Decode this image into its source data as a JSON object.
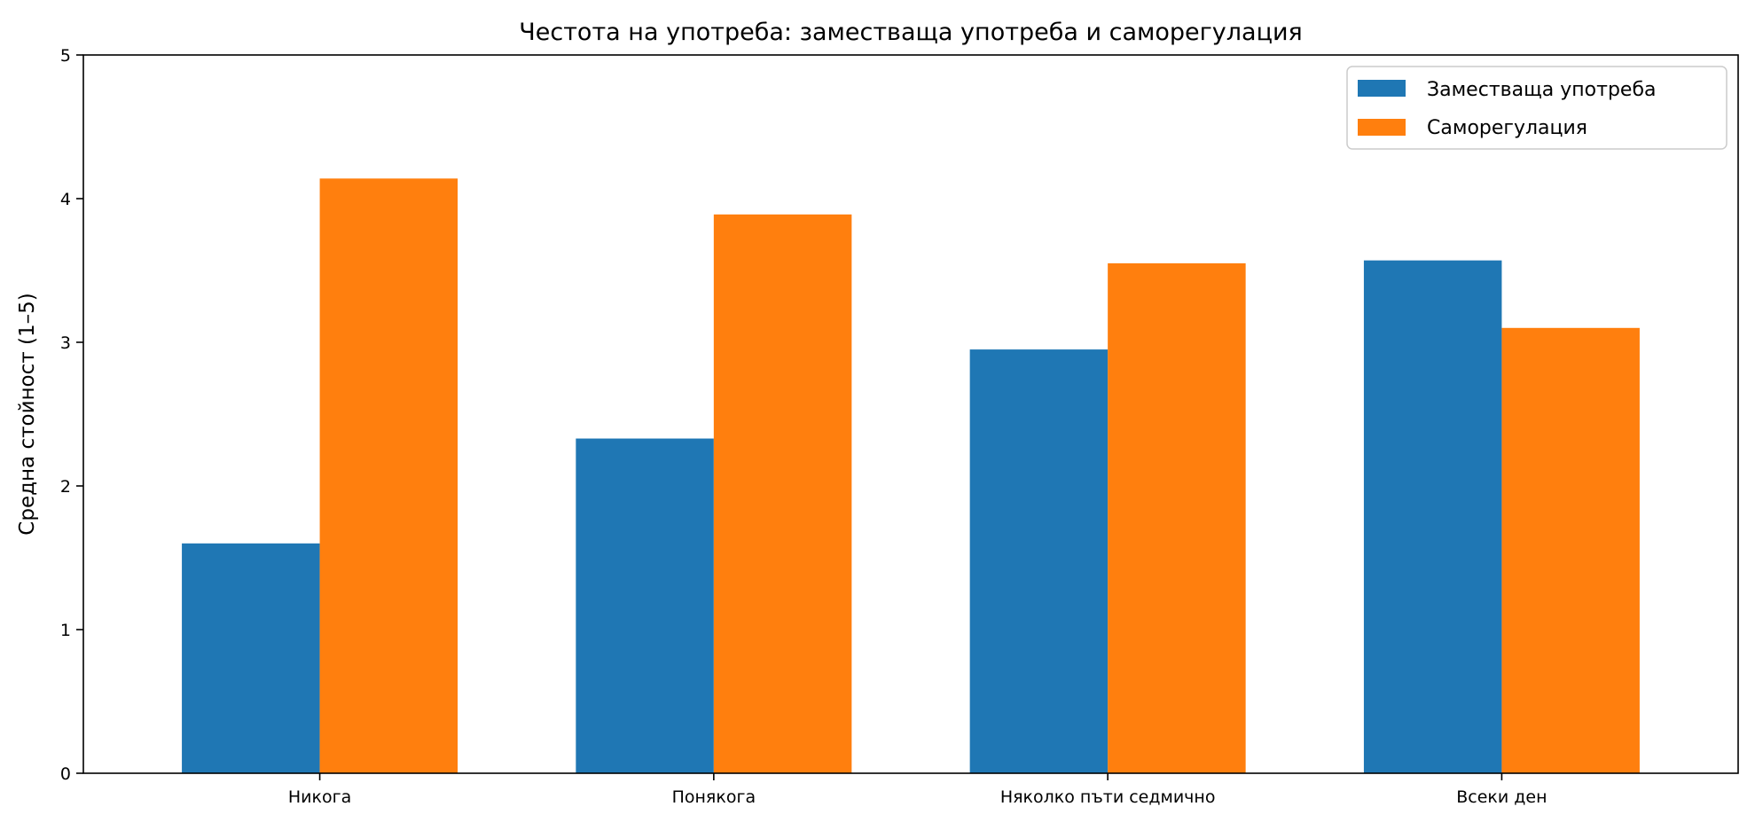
{
  "chart_data": {
    "type": "bar",
    "title": "Честота на употреба: заместваща употреба и саморегулация",
    "xlabel": "",
    "ylabel": "Средна стойност (1–5)",
    "categories": [
      "Никога",
      "Понякога",
      "Няколко пъти седмично",
      "Всеки ден"
    ],
    "series": [
      {
        "name": "Заместваща употреба",
        "color": "#1f77b4",
        "values": [
          1.6,
          2.33,
          2.95,
          3.57
        ]
      },
      {
        "name": "Саморегулация",
        "color": "#ff7f0e",
        "values": [
          4.14,
          3.89,
          3.55,
          3.1
        ]
      }
    ],
    "ylim": [
      0,
      5
    ],
    "yticks": [
      0,
      1,
      2,
      3,
      4,
      5
    ],
    "grid": false,
    "legend_position": "top-right"
  }
}
